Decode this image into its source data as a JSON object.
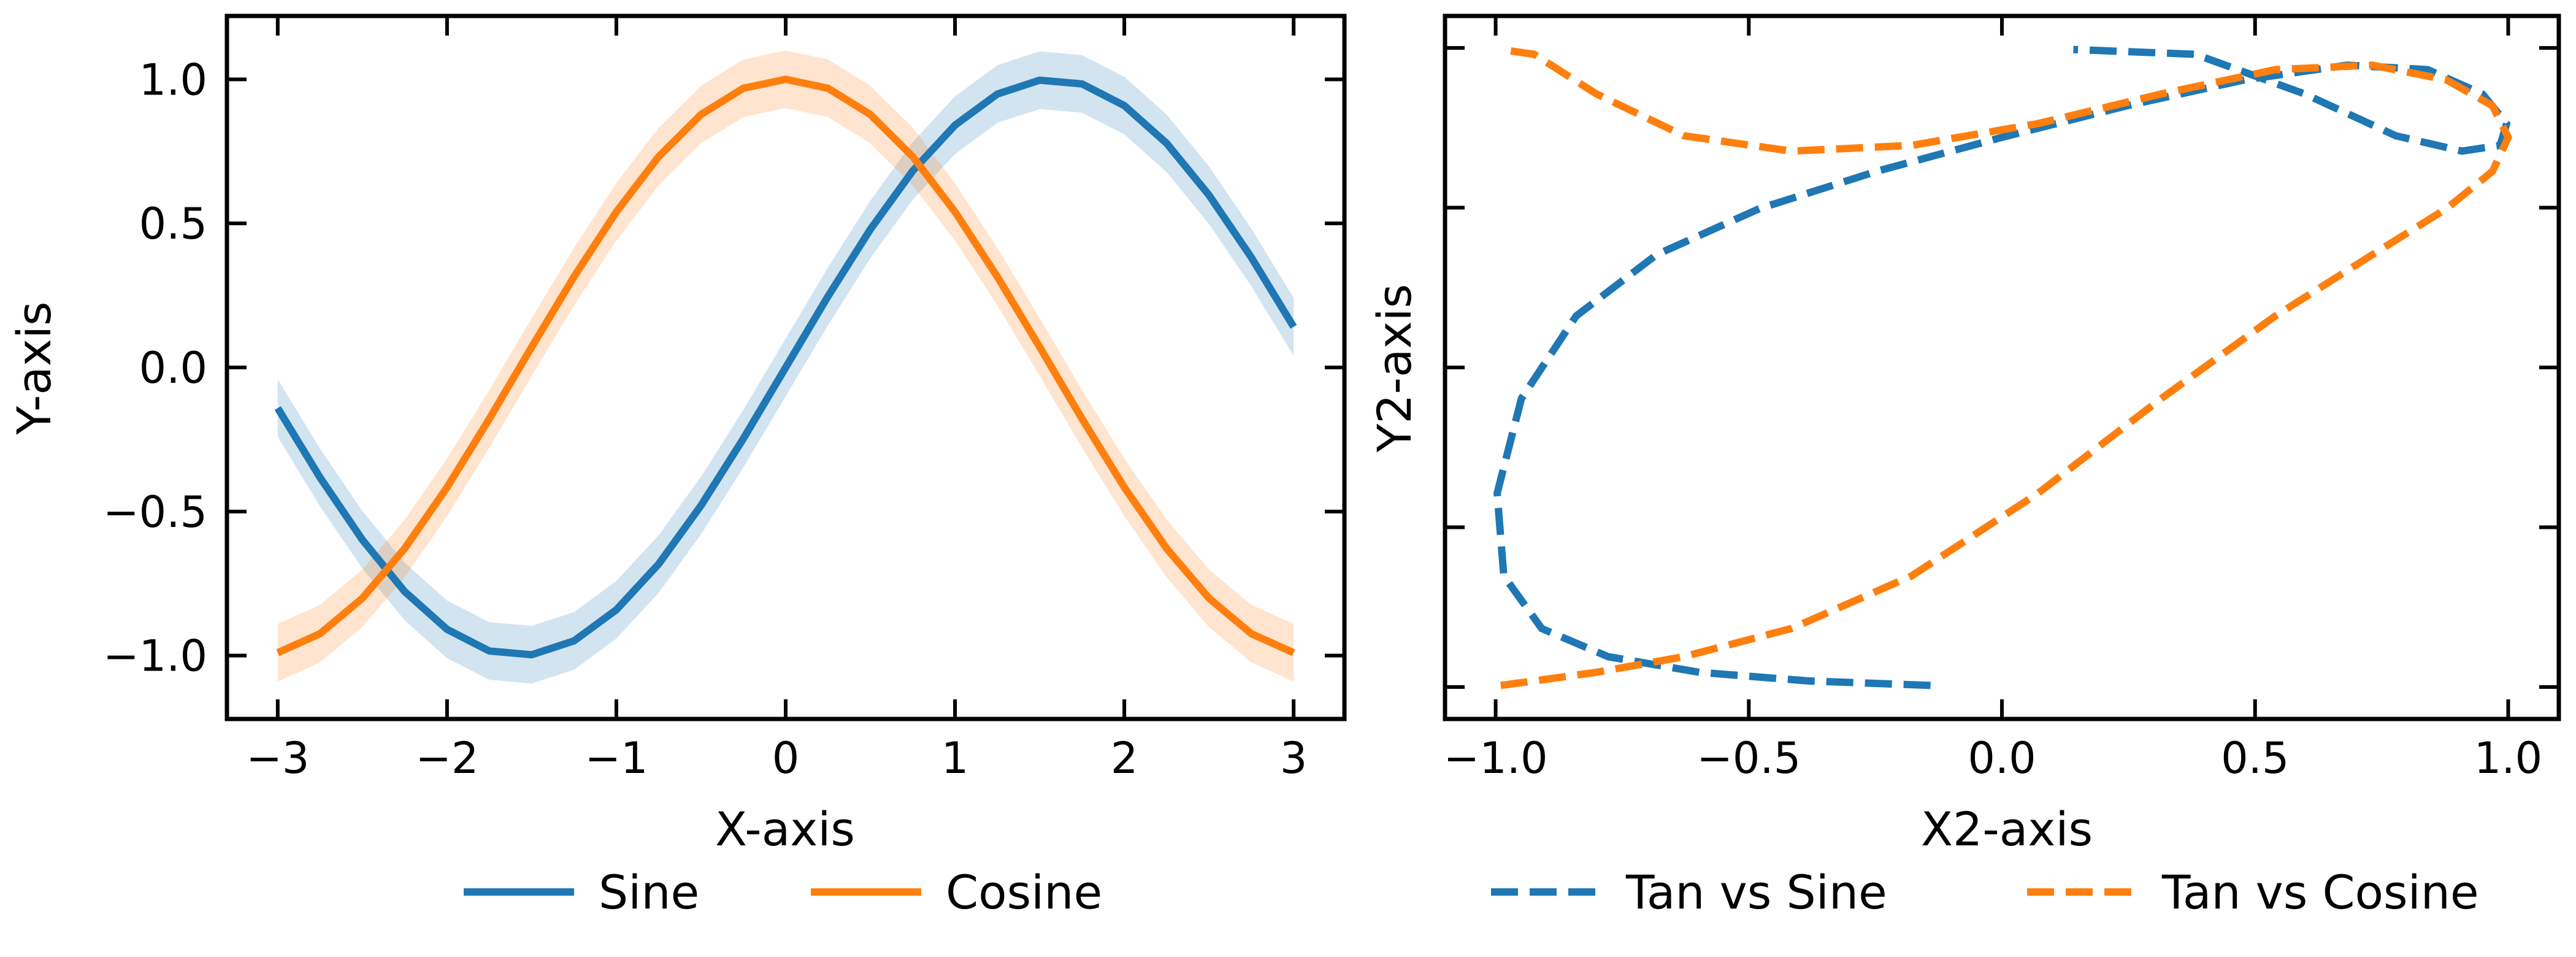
{
  "chart_data": [
    {
      "type": "line",
      "title": "",
      "xlabel": "X-axis",
      "ylabel": "Y-axis",
      "xlim": [
        -3.3,
        3.3
      ],
      "ylim": [
        -1.22,
        1.22
      ],
      "xticks": [
        -3,
        -2,
        -1,
        0,
        1,
        2,
        3
      ],
      "yticks": [
        -1.0,
        -0.5,
        0.0,
        0.5,
        1.0
      ],
      "xtick_labels": [
        "−3",
        "−2",
        "−1",
        "0",
        "1",
        "2",
        "3"
      ],
      "ytick_labels": [
        "−1.0",
        "−0.5",
        "0.0",
        "0.5",
        "1.0"
      ],
      "grid": false,
      "legend_position": "below",
      "series": [
        {
          "name": "Sine",
          "color": "#1f77b4",
          "line_style": "solid",
          "band": 0.1,
          "x": [
            -3.0,
            -2.75,
            -2.5,
            -2.25,
            -2.0,
            -1.75,
            -1.5,
            -1.25,
            -1.0,
            -0.75,
            -0.5,
            -0.25,
            0.0,
            0.25,
            0.5,
            0.75,
            1.0,
            1.25,
            1.5,
            1.75,
            2.0,
            2.25,
            2.5,
            2.75,
            3.0
          ],
          "y": [
            -0.141,
            -0.382,
            -0.598,
            -0.778,
            -0.909,
            -0.984,
            -0.997,
            -0.949,
            -0.841,
            -0.682,
            -0.479,
            -0.247,
            0.0,
            0.247,
            0.479,
            0.682,
            0.841,
            0.949,
            0.997,
            0.984,
            0.909,
            0.778,
            0.598,
            0.382,
            0.141
          ]
        },
        {
          "name": "Cosine",
          "color": "#ff7f0e",
          "line_style": "solid",
          "band": 0.1,
          "x": [
            -3.0,
            -2.75,
            -2.5,
            -2.25,
            -2.0,
            -1.75,
            -1.5,
            -1.25,
            -1.0,
            -0.75,
            -0.5,
            -0.25,
            0.0,
            0.25,
            0.5,
            0.75,
            1.0,
            1.25,
            1.5,
            1.75,
            2.0,
            2.25,
            2.5,
            2.75,
            3.0
          ],
          "y": [
            -0.99,
            -0.924,
            -0.801,
            -0.628,
            -0.416,
            -0.178,
            0.071,
            0.315,
            0.54,
            0.732,
            0.878,
            0.969,
            1.0,
            0.969,
            0.878,
            0.732,
            0.54,
            0.315,
            0.071,
            -0.178,
            -0.416,
            -0.628,
            -0.801,
            -0.924,
            -0.99
          ]
        }
      ]
    },
    {
      "type": "line",
      "title": "",
      "xlabel": "X2-axis",
      "ylabel": "Y2-axis",
      "xlim": [
        -1.1,
        1.1
      ],
      "ylim": [
        -1.1,
        1.1
      ],
      "xticks": [
        -1.0,
        -0.5,
        0.0,
        0.5,
        1.0
      ],
      "yticks": [
        -1.0,
        -0.5,
        0.0,
        0.5,
        1.0
      ],
      "xtick_labels": [
        "−1.0",
        "−0.5",
        "0.0",
        "0.5",
        "1.0"
      ],
      "ytick_labels": [],
      "grid": false,
      "legend_position": "below",
      "series": [
        {
          "name": "Tan vs Sine",
          "color": "#1f77b4",
          "line_style": "dashed",
          "x": [
            -0.141,
            -0.382,
            -0.598,
            -0.778,
            -0.909,
            -0.984,
            -0.997,
            -0.949,
            -0.841,
            -0.682,
            -0.479,
            -0.247,
            0.0,
            0.247,
            0.479,
            0.682,
            0.841,
            0.949,
            0.997,
            0.984,
            0.909,
            0.778,
            0.598,
            0.382,
            0.141
          ],
          "y": [
            -0.995,
            -0.981,
            -0.954,
            -0.905,
            -0.817,
            -0.652,
            -0.394,
            -0.097,
            0.161,
            0.353,
            0.497,
            0.614,
            0.72,
            0.819,
            0.9,
            0.946,
            0.932,
            0.856,
            0.763,
            0.695,
            0.677,
            0.725,
            0.856,
            0.98,
            0.995
          ]
        },
        {
          "name": "Tan vs Cosine",
          "color": "#ff7f0e",
          "line_style": "dashed",
          "x": [
            -0.99,
            -0.924,
            -0.801,
            -0.628,
            -0.416,
            -0.178,
            0.071,
            0.315,
            0.54,
            0.732,
            0.878,
            0.969,
            1.0,
            0.969,
            0.878,
            0.732,
            0.54,
            0.315,
            0.071,
            -0.178,
            -0.416,
            -0.628,
            -0.801,
            -0.924,
            -0.99
          ],
          "y": [
            -0.995,
            -0.981,
            -0.954,
            -0.905,
            -0.817,
            -0.652,
            -0.394,
            -0.097,
            0.161,
            0.353,
            0.497,
            0.614,
            0.72,
            0.819,
            0.9,
            0.946,
            0.932,
            0.856,
            0.763,
            0.695,
            0.677,
            0.725,
            0.856,
            0.98,
            0.995
          ]
        }
      ]
    }
  ]
}
